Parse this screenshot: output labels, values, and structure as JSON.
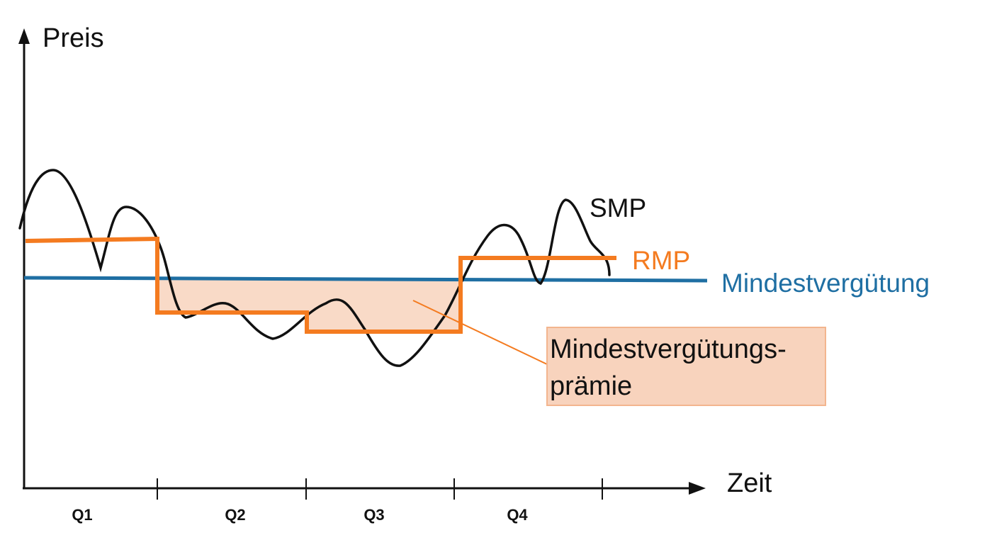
{
  "axes": {
    "y_label": "Preis",
    "x_label": "Zeit"
  },
  "quarters": [
    "Q1",
    "Q2",
    "Q3",
    "Q4"
  ],
  "series": {
    "smp": {
      "label": "SMP",
      "color": "#111111"
    },
    "rmp": {
      "label": "RMP",
      "color": "#f47b20"
    },
    "min": {
      "label": "Mindestvergütung",
      "color": "#1f6fa3"
    }
  },
  "premium": {
    "line1": "Mindestvergütungs-",
    "line2": "prämie",
    "fill_color": "#f8d3bd",
    "border_color": "#f3b58e"
  }
}
